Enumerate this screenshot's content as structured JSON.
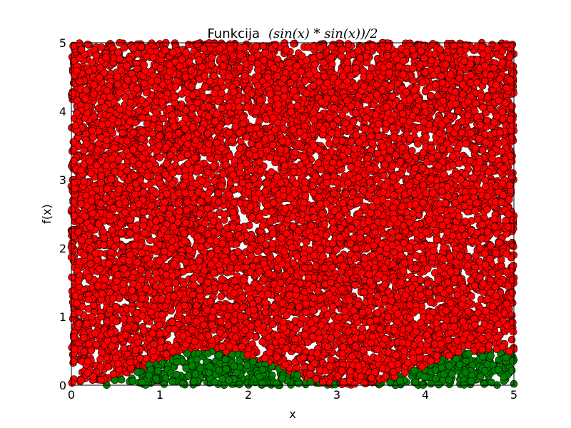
{
  "chart_data": {
    "type": "scatter",
    "title": "Funkcija",
    "title_formula": "(sin(x) * sin(x))/2",
    "xlabel": "x",
    "ylabel": "f(x)",
    "xlim": [
      0,
      5
    ],
    "ylim": [
      0,
      5
    ],
    "x_ticks": [
      "0",
      "1",
      "2",
      "3",
      "4",
      "5"
    ],
    "y_ticks": [
      "0",
      "1",
      "2",
      "3",
      "4",
      "5"
    ],
    "grid": false,
    "series": [
      {
        "name": "",
        "color": "#ff0000",
        "edge_color": "#000000",
        "region": "f(x) < y <= 5",
        "approx_point_count": 9600
      },
      {
        "name": "",
        "color": "#008000",
        "edge_color": "#000000",
        "region": "0 <= y <= f(x)",
        "approx_point_count": 850
      }
    ],
    "curve": "f(x) = sin(x)^2 / 2"
  }
}
